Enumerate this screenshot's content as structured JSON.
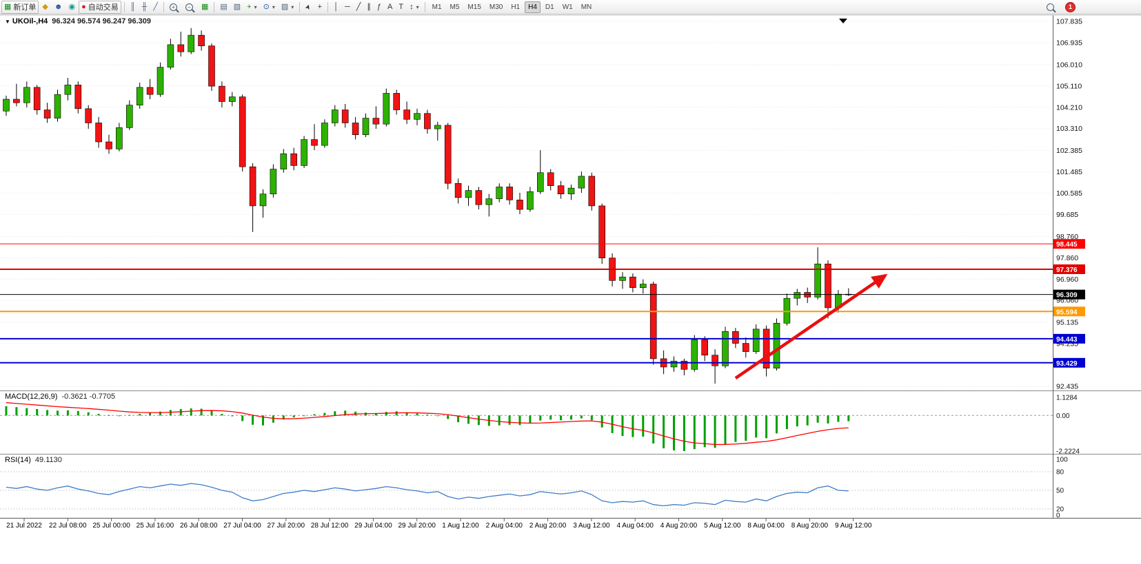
{
  "toolbar": {
    "new_order_label": "新订单",
    "auto_trading_label": "自动交易",
    "timeframes": [
      "M1",
      "M5",
      "M15",
      "M30",
      "H1",
      "H4",
      "D1",
      "W1",
      "MN"
    ],
    "active_timeframe": "H4",
    "notification_count": "1",
    "icons": {
      "new_order": "▦",
      "market_watch": "◆",
      "accounts": "☻",
      "community": "◉",
      "auto_trading": "●",
      "bars": "║",
      "candles": "╫",
      "line_chart": "╱",
      "zoom_in": "+",
      "zoom_out": "−",
      "tile": "▦",
      "arrange_a": "▤",
      "arrange_b": "▧",
      "add_indicator": "+",
      "period": "⊙",
      "template": "▨",
      "caret": "▾",
      "cursor": "➤",
      "crosshair": "+",
      "vline": "│",
      "hline": "─",
      "trendline": "╱",
      "channel": "∥",
      "fibonacci": "ƒ",
      "text_tool": "A",
      "label_tool": "T",
      "arrows": "↕",
      "search_plus": ""
    }
  },
  "header": {
    "symbol_period": "UKOil-,H4",
    "ohlc": "96.324 96.574 96.247 96.309",
    "expander": "▼"
  },
  "macd_header": {
    "label": "MACD(12,26,9)",
    "values": "-0.3621 -0.7705"
  },
  "rsi_header": {
    "label": "RSI(14)",
    "value": "49.1130"
  },
  "chart_data": {
    "type": "candlestick",
    "symbol": "UKOil-",
    "period": "H4",
    "price_axis": [
      107.835,
      106.935,
      106.01,
      105.11,
      104.21,
      103.31,
      102.385,
      101.485,
      100.585,
      99.685,
      98.76,
      97.86,
      96.96,
      96.06,
      95.135,
      94.235,
      93.335,
      92.435
    ],
    "time_axis": [
      "21 Jul 2022",
      "22 Jul 08:00",
      "25 Jul 00:00",
      "25 Jul 16:00",
      "26 Jul 08:00",
      "27 Jul 04:00",
      "27 Jul 20:00",
      "28 Jul 12:00",
      "29 Jul 04:00",
      "29 Jul 20:00",
      "1 Aug 12:00",
      "2 Aug 04:00",
      "2 Aug 20:00",
      "3 Aug 12:00",
      "4 Aug 04:00",
      "4 Aug 20:00",
      "5 Aug 12:00",
      "8 Aug 04:00",
      "8 Aug 20:00",
      "9 Aug 12:00"
    ],
    "candles": [
      [
        104.05,
        104.7,
        103.85,
        104.55
      ],
      [
        104.55,
        105.2,
        104.25,
        104.4
      ],
      [
        104.4,
        105.3,
        104.2,
        105.05
      ],
      [
        105.05,
        105.15,
        103.9,
        104.1
      ],
      [
        104.1,
        104.4,
        103.55,
        103.75
      ],
      [
        103.75,
        104.95,
        103.6,
        104.75
      ],
      [
        104.75,
        105.45,
        104.5,
        105.15
      ],
      [
        105.15,
        105.3,
        103.95,
        104.15
      ],
      [
        104.15,
        104.3,
        103.3,
        103.55
      ],
      [
        103.55,
        103.8,
        102.5,
        102.75
      ],
      [
        102.75,
        103.05,
        102.25,
        102.45
      ],
      [
        102.45,
        103.55,
        102.35,
        103.35
      ],
      [
        103.35,
        104.5,
        103.25,
        104.3
      ],
      [
        104.3,
        105.25,
        104.15,
        105.05
      ],
      [
        105.05,
        105.4,
        104.55,
        104.75
      ],
      [
        104.75,
        106.1,
        104.65,
        105.9
      ],
      [
        105.9,
        107.1,
        105.8,
        106.85
      ],
      [
        106.85,
        107.4,
        106.35,
        106.55
      ],
      [
        106.55,
        107.55,
        106.45,
        107.25
      ],
      [
        107.25,
        107.45,
        106.6,
        106.8
      ],
      [
        106.8,
        106.9,
        104.9,
        105.1
      ],
      [
        105.1,
        105.3,
        104.2,
        104.45
      ],
      [
        104.45,
        104.85,
        104.25,
        104.65
      ],
      [
        104.65,
        104.75,
        101.5,
        101.7
      ],
      [
        101.7,
        101.85,
        98.95,
        100.05
      ],
      [
        100.05,
        100.75,
        99.55,
        100.55
      ],
      [
        100.55,
        101.8,
        100.4,
        101.6
      ],
      [
        101.6,
        102.45,
        101.45,
        102.25
      ],
      [
        102.25,
        102.5,
        101.55,
        101.75
      ],
      [
        101.75,
        103.0,
        101.65,
        102.85
      ],
      [
        102.85,
        103.5,
        102.4,
        102.6
      ],
      [
        102.6,
        103.7,
        102.5,
        103.55
      ],
      [
        103.55,
        104.3,
        103.4,
        104.1
      ],
      [
        104.1,
        104.35,
        103.35,
        103.55
      ],
      [
        103.55,
        103.8,
        102.85,
        103.05
      ],
      [
        103.05,
        103.95,
        102.95,
        103.75
      ],
      [
        103.75,
        104.25,
        103.3,
        103.5
      ],
      [
        103.5,
        105.0,
        103.4,
        104.8
      ],
      [
        104.8,
        104.95,
        103.9,
        104.1
      ],
      [
        104.1,
        104.45,
        103.5,
        103.7
      ],
      [
        103.7,
        104.15,
        103.45,
        103.95
      ],
      [
        103.95,
        104.1,
        103.1,
        103.3
      ],
      [
        103.3,
        103.6,
        102.8,
        103.45
      ],
      [
        103.45,
        103.55,
        100.75,
        101.0
      ],
      [
        101.0,
        101.2,
        100.15,
        100.4
      ],
      [
        100.4,
        100.9,
        100.05,
        100.7
      ],
      [
        100.7,
        100.85,
        99.9,
        100.1
      ],
      [
        100.1,
        100.55,
        99.6,
        100.35
      ],
      [
        100.35,
        101.0,
        100.2,
        100.85
      ],
      [
        100.85,
        101.0,
        100.1,
        100.3
      ],
      [
        100.3,
        100.6,
        99.7,
        99.9
      ],
      [
        99.9,
        100.85,
        99.8,
        100.65
      ],
      [
        100.65,
        102.4,
        100.55,
        101.45
      ],
      [
        101.45,
        101.6,
        100.7,
        100.9
      ],
      [
        100.9,
        101.1,
        100.35,
        100.55
      ],
      [
        100.55,
        100.95,
        100.3,
        100.8
      ],
      [
        100.8,
        101.5,
        100.6,
        101.3
      ],
      [
        101.3,
        101.45,
        99.85,
        100.05
      ],
      [
        100.05,
        100.15,
        97.6,
        97.85
      ],
      [
        97.85,
        98.05,
        96.65,
        96.9
      ],
      [
        96.9,
        97.25,
        96.55,
        97.05
      ],
      [
        97.05,
        97.2,
        96.4,
        96.6
      ],
      [
        96.6,
        96.95,
        96.35,
        96.75
      ],
      [
        96.75,
        96.85,
        93.35,
        93.6
      ],
      [
        93.6,
        93.95,
        92.95,
        93.25
      ],
      [
        93.25,
        93.7,
        93.05,
        93.5
      ],
      [
        93.5,
        93.6,
        92.9,
        93.15
      ],
      [
        93.15,
        94.6,
        93.05,
        94.4
      ],
      [
        94.4,
        94.55,
        93.5,
        93.75
      ],
      [
        93.75,
        94.0,
        92.55,
        93.3
      ],
      [
        93.3,
        94.95,
        93.2,
        94.75
      ],
      [
        94.75,
        94.9,
        94.05,
        94.25
      ],
      [
        94.25,
        94.5,
        93.65,
        93.9
      ],
      [
        93.9,
        95.05,
        93.8,
        94.85
      ],
      [
        94.85,
        95.0,
        92.85,
        93.2
      ],
      [
        93.2,
        95.3,
        93.1,
        95.1
      ],
      [
        95.1,
        96.35,
        95.0,
        96.15
      ],
      [
        96.15,
        96.55,
        95.85,
        96.4
      ],
      [
        96.4,
        96.6,
        95.95,
        96.2
      ],
      [
        96.2,
        98.3,
        96.1,
        97.6
      ],
      [
        97.6,
        97.75,
        95.3,
        95.75
      ],
      [
        95.75,
        96.5,
        95.55,
        96.324
      ],
      [
        96.324,
        96.574,
        96.247,
        96.309
      ]
    ],
    "hlines": [
      {
        "price": 98.445,
        "color": "#FF0000",
        "width": 1,
        "label": "98.445"
      },
      {
        "price": 97.376,
        "color": "#E00000",
        "width": 2,
        "label": "97.376"
      },
      {
        "price": 96.309,
        "color": "#000000",
        "width": 1,
        "label": "96.309"
      },
      {
        "price": 95.594,
        "color": "#FF9900",
        "width": 2,
        "label": "95.594"
      },
      {
        "price": 94.443,
        "color": "#0000D0",
        "width": 2,
        "label": "94.443"
      },
      {
        "price": 93.429,
        "color": "#0000D0",
        "width": 2,
        "label": "93.429"
      }
    ],
    "trend_arrow": {
      "from_bar": 71.0,
      "from_price": 92.78,
      "to_bar": 85.6,
      "to_price": 97.12,
      "color": "#E81010"
    },
    "macd": {
      "axis": [
        "1.1284",
        "0.00",
        "-2.2224"
      ],
      "histogram": [
        0.58,
        0.52,
        0.46,
        0.4,
        0.34,
        0.3,
        0.32,
        0.28,
        0.2,
        0.1,
        0.02,
        -0.02,
        0.03,
        0.1,
        0.16,
        0.24,
        0.34,
        0.4,
        0.44,
        0.42,
        0.3,
        0.1,
        -0.05,
        -0.35,
        -0.58,
        -0.62,
        -0.45,
        -0.25,
        -0.12,
        0.0,
        0.08,
        0.16,
        0.26,
        0.3,
        0.24,
        0.18,
        0.15,
        0.22,
        0.26,
        0.2,
        0.12,
        0.05,
        -0.02,
        -0.22,
        -0.42,
        -0.52,
        -0.6,
        -0.65,
        -0.62,
        -0.58,
        -0.6,
        -0.5,
        -0.32,
        -0.26,
        -0.3,
        -0.26,
        -0.18,
        -0.3,
        -0.75,
        -1.1,
        -1.28,
        -1.35,
        -1.32,
        -1.75,
        -2.05,
        -2.18,
        -2.22,
        -2.1,
        -1.98,
        -2.02,
        -1.8,
        -1.65,
        -1.58,
        -1.38,
        -1.42,
        -1.12,
        -0.85,
        -0.68,
        -0.62,
        -0.45,
        -0.5,
        -0.4,
        -0.36
      ],
      "signal": [
        0.8,
        0.75,
        0.7,
        0.65,
        0.6,
        0.55,
        0.51,
        0.47,
        0.43,
        0.38,
        0.33,
        0.27,
        0.22,
        0.19,
        0.18,
        0.18,
        0.2,
        0.23,
        0.27,
        0.3,
        0.31,
        0.29,
        0.24,
        0.15,
        0.02,
        -0.1,
        -0.18,
        -0.21,
        -0.2,
        -0.17,
        -0.12,
        -0.07,
        -0.01,
        0.05,
        0.09,
        0.11,
        0.12,
        0.14,
        0.16,
        0.17,
        0.16,
        0.14,
        0.11,
        0.05,
        -0.04,
        -0.14,
        -0.23,
        -0.31,
        -0.38,
        -0.43,
        -0.46,
        -0.48,
        -0.47,
        -0.44,
        -0.41,
        -0.38,
        -0.35,
        -0.34,
        -0.42,
        -0.55,
        -0.7,
        -0.83,
        -0.93,
        -1.09,
        -1.28,
        -1.46,
        -1.61,
        -1.71,
        -1.76,
        -1.81,
        -1.81,
        -1.78,
        -1.74,
        -1.67,
        -1.62,
        -1.52,
        -1.39,
        -1.25,
        -1.12,
        -0.99,
        -0.89,
        -0.81,
        -0.77
      ]
    },
    "rsi": {
      "axis": [
        "100",
        "80",
        "50",
        "20",
        "0"
      ],
      "levels": [
        80,
        50,
        20
      ],
      "values": [
        55,
        53,
        56,
        52,
        50,
        54,
        57,
        52,
        49,
        45,
        43,
        48,
        52,
        56,
        54,
        57,
        60,
        58,
        61,
        59,
        55,
        50,
        47,
        38,
        33,
        35,
        40,
        45,
        47,
        50,
        48,
        51,
        54,
        52,
        49,
        51,
        53,
        56,
        54,
        51,
        49,
        46,
        48,
        40,
        36,
        39,
        37,
        40,
        42,
        44,
        41,
        43,
        48,
        46,
        44,
        46,
        49,
        43,
        33,
        30,
        32,
        31,
        33,
        27,
        25,
        27,
        26,
        30,
        29,
        27,
        34,
        32,
        31,
        36,
        33,
        40,
        45,
        47,
        46,
        54,
        57,
        50,
        49
      ]
    },
    "colors": {
      "up": "#2DB200",
      "down": "#F01414",
      "wick": "#000000",
      "macd_bar": "#00A000",
      "macd_signal": "#FF0000",
      "rsi_line": "#3C7CC8",
      "grid": "#e3e3e3",
      "frame": "#5a5a5a"
    }
  }
}
